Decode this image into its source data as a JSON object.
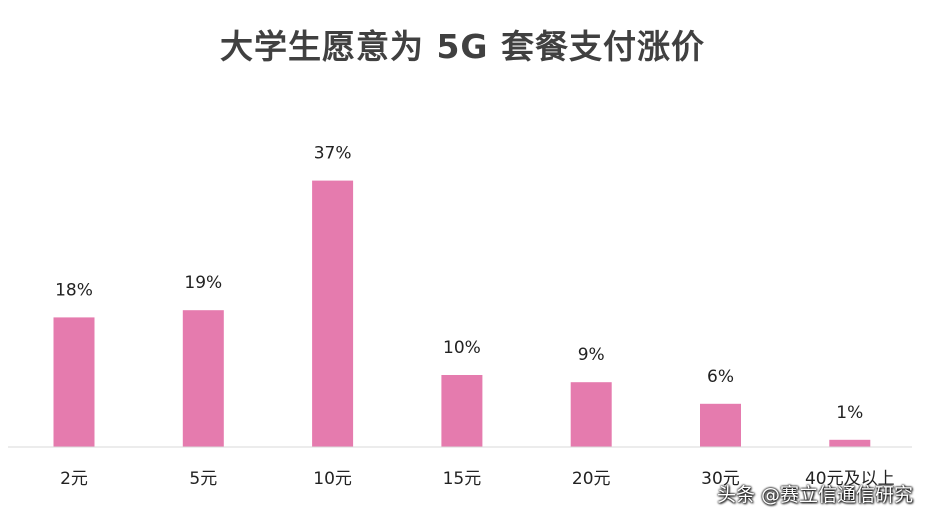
{
  "chart_data": {
    "type": "bar",
    "title": "大学生愿意为 5G 套餐支付涨价",
    "categories": [
      "2元",
      "5元",
      "10元",
      "15元",
      "20元",
      "30元",
      "40元及以上"
    ],
    "values": [
      18,
      19,
      37,
      10,
      9,
      6,
      1
    ],
    "data_labels": [
      "18%",
      "19%",
      "37%",
      "10%",
      "9%",
      "6%",
      "1%"
    ],
    "unit": "%",
    "ylim": [
      0,
      40
    ],
    "grid": false,
    "legend": "none",
    "bar_color": "#E57BAE",
    "axis_color": "#D9D9D9"
  },
  "watermark": "头条 @赛立信通信研究"
}
